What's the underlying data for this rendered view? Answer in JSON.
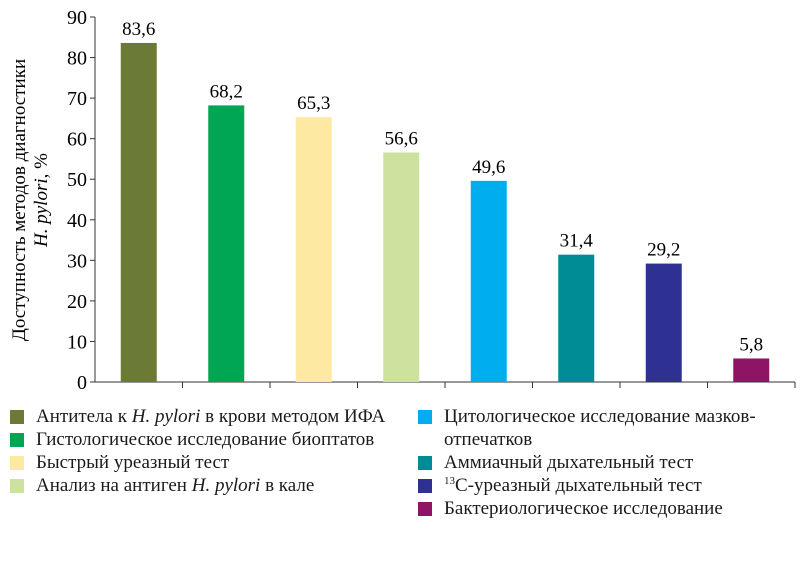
{
  "chart_data": {
    "type": "bar",
    "title": "",
    "ylabel_line1": "Доступность методов диагностики",
    "ylabel_line2": {
      "italic": "H. pylori",
      "post": ", %"
    },
    "ylim": [
      0,
      90
    ],
    "yticks": [
      0,
      10,
      20,
      30,
      40,
      50,
      60,
      70,
      80,
      90
    ],
    "grid": false,
    "legend_position": "bottom",
    "value_labels": [
      "83,6",
      "68,2",
      "65,3",
      "56,6",
      "49,6",
      "31,4",
      "29,2",
      "5,8"
    ],
    "values": [
      83.6,
      68.2,
      65.3,
      56.6,
      49.6,
      31.4,
      29.2,
      5.8
    ],
    "colors": [
      "#6b7a35",
      "#00a651",
      "#fde9a2",
      "#cde29e",
      "#00aeef",
      "#008c95",
      "#2e3192",
      "#8e1565"
    ],
    "categories": [
      {
        "pre": "Антитела к ",
        "italic": "H. pylori",
        "post": " в крови методом ИФА"
      },
      {
        "pre": "Гистологическое исследование биоптатов",
        "italic": "",
        "post": ""
      },
      {
        "pre": "Быстрый уреазный тест",
        "italic": "",
        "post": ""
      },
      {
        "pre": "Анализ на антиген ",
        "italic": "H. pylori",
        "post": " в кале"
      },
      {
        "pre": "Цитологическое исследование мазков-отпечатков",
        "italic": "",
        "post": ""
      },
      {
        "pre": "Аммиачный дыхательный тест",
        "italic": "",
        "post": ""
      },
      {
        "sup": "13",
        "pre": "С-уреазный дыхательный тест",
        "italic": "",
        "post": ""
      },
      {
        "pre": "Бактериологическое исследование",
        "italic": "",
        "post": ""
      }
    ]
  }
}
